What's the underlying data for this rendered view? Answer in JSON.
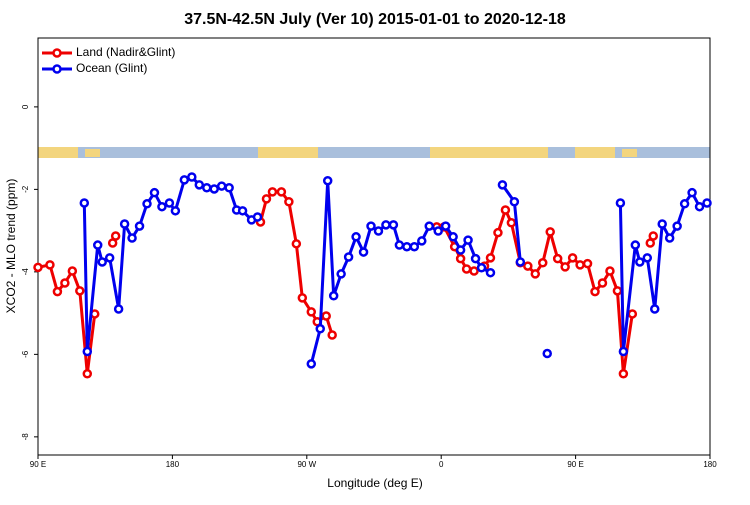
{
  "chart_data": {
    "type": "line",
    "title": "37.5N-42.5N July (Ver 10)   2015-01-01 to 2020-12-18",
    "x_label": "Longitude (deg E)",
    "y_label": "XCO2 - MLO trend (ppm)",
    "xlim": [
      90,
      540
    ],
    "xticks": [
      {
        "value": 90,
        "label": "90 E"
      },
      {
        "value": 180,
        "label": "180"
      },
      {
        "value": 270,
        "label": "90 W"
      },
      {
        "value": 360,
        "label": "0"
      },
      {
        "value": 450,
        "label": "90 E"
      },
      {
        "value": 540,
        "label": "180"
      }
    ],
    "ylim": [
      -8.44,
      1.67
    ],
    "yticks": [
      0,
      -2,
      -4,
      -6,
      -8
    ],
    "legend": "top-left",
    "series": [
      {
        "name": "Land (Nadir&Glint)",
        "color": "#ee0000",
        "x": [
          90,
          98,
          103,
          108,
          113,
          118,
          123,
          128,
          null,
          140,
          142,
          null,
          239,
          243,
          247,
          253,
          258,
          263,
          267,
          273,
          277,
          283,
          287,
          null,
          357,
          362,
          369,
          373,
          377,
          382,
          389,
          393,
          398,
          403,
          407,
          413,
          418,
          423,
          428,
          433,
          438,
          443,
          448,
          453,
          458,
          463,
          468,
          473,
          478,
          482,
          488,
          null,
          500,
          502
        ],
        "values": [
          -3.89,
          -3.83,
          -4.48,
          -4.27,
          -3.98,
          -4.46,
          -6.47,
          -5.02,
          null,
          -3.3,
          -3.13,
          null,
          -2.79,
          -2.23,
          -2.06,
          -2.06,
          -2.3,
          -3.32,
          -4.63,
          -4.97,
          -5.21,
          -5.07,
          -5.53,
          null,
          -2.91,
          -2.91,
          -3.39,
          -3.68,
          -3.93,
          -3.98,
          -3.86,
          -3.66,
          -3.05,
          -2.5,
          -2.81,
          -3.78,
          -3.86,
          -4.05,
          -3.78,
          -3.03,
          -3.68,
          -3.88,
          -3.66,
          -3.83,
          -3.8,
          -4.48,
          -4.27,
          -3.98,
          -4.46,
          -6.47,
          -5.02,
          null,
          -3.3,
          -3.13
        ]
      },
      {
        "name": "Ocean (Glint)",
        "color": "#0000ee",
        "x": [
          121,
          123,
          130,
          133,
          138,
          144,
          148,
          153,
          158,
          163,
          168,
          173,
          178,
          182,
          188,
          193,
          198,
          203,
          208,
          213,
          218,
          223,
          227,
          233,
          237,
          null,
          273,
          279,
          284,
          288,
          293,
          298,
          303,
          308,
          313,
          318,
          323,
          328,
          332,
          337,
          342,
          347,
          352,
          358,
          363,
          368,
          373,
          378,
          383,
          387,
          393,
          null,
          401,
          409,
          413,
          null,
          431,
          null,
          480,
          482,
          490,
          493,
          498,
          503,
          508,
          513,
          518,
          523,
          528,
          533,
          538
        ],
        "values": [
          -2.33,
          -5.93,
          -3.35,
          -3.76,
          -3.66,
          -4.9,
          -2.84,
          -3.18,
          -2.89,
          -2.35,
          -2.08,
          -2.42,
          -2.33,
          -2.52,
          -1.77,
          -1.7,
          -1.89,
          -1.96,
          -1.99,
          -1.92,
          -1.96,
          -2.5,
          -2.52,
          -2.74,
          -2.67,
          null,
          -6.23,
          -5.38,
          -1.79,
          -4.58,
          -4.05,
          -3.64,
          -3.15,
          -3.52,
          -2.89,
          -3.01,
          -2.86,
          -2.86,
          -3.35,
          -3.39,
          -3.39,
          -3.25,
          -2.89,
          -3.01,
          -2.89,
          -3.15,
          -3.47,
          -3.23,
          -3.68,
          -3.9,
          -4.02,
          null,
          -1.89,
          -2.3,
          -3.76,
          null,
          -5.98,
          null,
          -2.33,
          -5.93,
          -3.35,
          -3.76,
          -3.66,
          -4.9,
          -2.84,
          -3.18,
          -2.89,
          -2.35,
          -2.08,
          -2.42,
          -2.33
        ]
      }
    ]
  }
}
